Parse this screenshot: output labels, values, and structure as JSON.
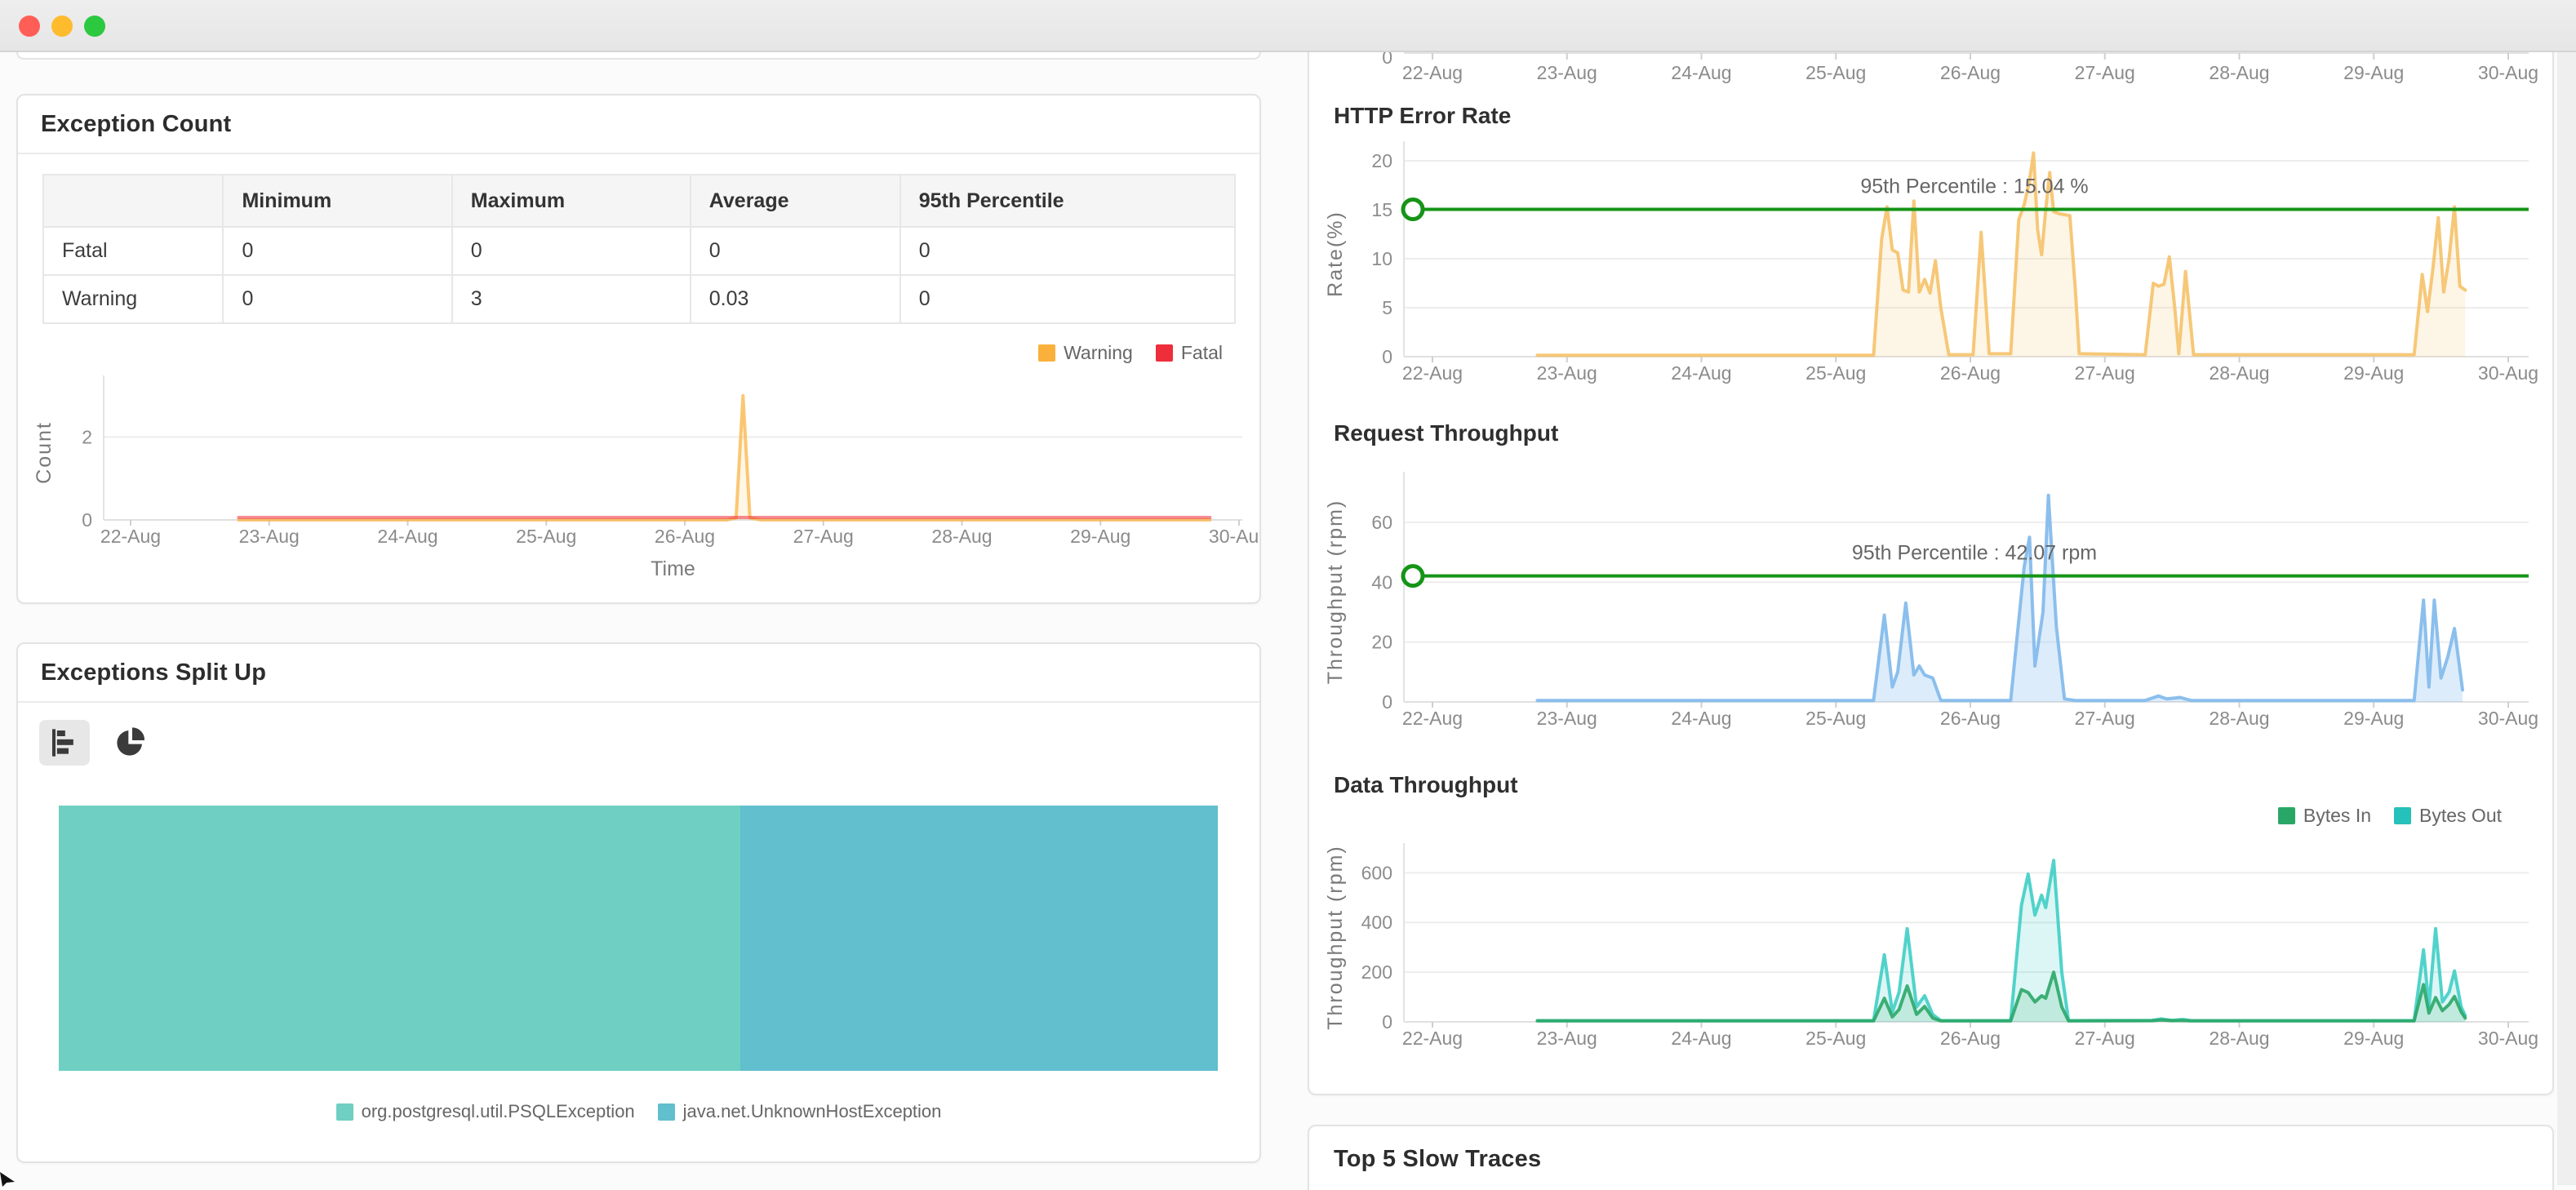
{
  "window": {
    "traffic_lights": [
      "close",
      "minimize",
      "maximize"
    ]
  },
  "left": {
    "exception_count": {
      "title": "Exception Count",
      "table": {
        "headers": [
          "",
          "Minimum",
          "Maximum",
          "Average",
          "95th Percentile"
        ],
        "rows": [
          [
            "Fatal",
            "0",
            "0",
            "0",
            "0"
          ],
          [
            "Warning",
            "0",
            "3",
            "0.03",
            "0"
          ]
        ]
      },
      "legend": [
        {
          "label": "Warning",
          "color": "#F9B13C"
        },
        {
          "label": "Fatal",
          "color": "#EE2E3A"
        }
      ]
    },
    "exceptions_split": {
      "title": "Exceptions Split Up",
      "toolbar": [
        {
          "name": "bar-chart",
          "selected": true
        },
        {
          "name": "pie-chart",
          "selected": false
        }
      ],
      "stacked_bar": [
        {
          "label": "org.postgresql.util.PSQLException",
          "color": "#6FCFC2",
          "percent": 58.8
        },
        {
          "label": "java.net.UnknownHostException",
          "color": "#61BFCE",
          "percent": 41.2
        }
      ]
    }
  },
  "right": {
    "slow_traces_title": "Top 5 Slow Traces"
  },
  "chart_data": [
    {
      "id": "top-axis",
      "type": "area",
      "title": "",
      "axis_only": true,
      "xticks": [
        "22-Aug",
        "23-Aug",
        "24-Aug",
        "25-Aug",
        "26-Aug",
        "27-Aug",
        "28-Aug",
        "29-Aug",
        "30-Aug"
      ],
      "yticks": [
        0
      ],
      "note": "bottom edge of a chart cut off by the window top"
    },
    {
      "id": "exception-count-trend",
      "type": "area",
      "title": "",
      "xlabel": "Time",
      "ylabel": "Count",
      "xticks": [
        "22-Aug",
        "23-Aug",
        "24-Aug",
        "25-Aug",
        "26-Aug",
        "27-Aug",
        "28-Aug",
        "29-Aug",
        "30-Aug"
      ],
      "yticks": [
        0,
        2
      ],
      "ymax": 3.25,
      "series": [
        {
          "name": "Warning",
          "color": "#F9B13C",
          "line_opacity": 0.7,
          "fill_opacity": 0.12,
          "points": [
            [
              22.78,
              0
            ],
            [
              26.3,
              0
            ],
            [
              26.37,
              0.05
            ],
            [
              26.42,
              3
            ],
            [
              26.47,
              0.05
            ],
            [
              26.55,
              0
            ],
            [
              29.79,
              0
            ]
          ]
        },
        {
          "name": "Fatal",
          "color": "#EE2E3A",
          "line_opacity": 0.55,
          "fill_opacity": 0,
          "points": [
            [
              22.78,
              0.06
            ],
            [
              29.79,
              0.06
            ]
          ]
        }
      ]
    },
    {
      "id": "http-error-rate",
      "type": "area",
      "title": "HTTP Error Rate",
      "ylabel": "Rate(%)",
      "xticks": [
        "22-Aug",
        "23-Aug",
        "24-Aug",
        "25-Aug",
        "26-Aug",
        "27-Aug",
        "28-Aug",
        "29-Aug",
        "30-Aug"
      ],
      "yticks": [
        0,
        5,
        10,
        15,
        20
      ],
      "ymax": 21,
      "percentile": {
        "value": 15.04,
        "label": "95th Percentile : 15.04 %",
        "color": "#169417"
      },
      "series": [
        {
          "name": "HTTP Error Rate",
          "color": "#F5BE62",
          "line_opacity": 0.85,
          "fill_opacity": 0.16,
          "points": [
            [
              22.78,
              0.15
            ],
            [
              25.28,
              0.15
            ],
            [
              25.34,
              12
            ],
            [
              25.38,
              15.3
            ],
            [
              25.42,
              10.9
            ],
            [
              25.46,
              10.6
            ],
            [
              25.5,
              6.8
            ],
            [
              25.54,
              6.6
            ],
            [
              25.58,
              15.9
            ],
            [
              25.62,
              6.6
            ],
            [
              25.66,
              7.9
            ],
            [
              25.7,
              6.5
            ],
            [
              25.74,
              9.8
            ],
            [
              25.78,
              5
            ],
            [
              25.84,
              0.2
            ],
            [
              26.02,
              0.2
            ],
            [
              26.08,
              12.7
            ],
            [
              26.14,
              0.3
            ],
            [
              26.3,
              0.3
            ],
            [
              26.36,
              14
            ],
            [
              26.4,
              15.5
            ],
            [
              26.44,
              18
            ],
            [
              26.47,
              20.8
            ],
            [
              26.5,
              13
            ],
            [
              26.53,
              10.4
            ],
            [
              26.56,
              15
            ],
            [
              26.59,
              18.8
            ],
            [
              26.62,
              14.8
            ],
            [
              26.66,
              14.6
            ],
            [
              26.7,
              14.5
            ],
            [
              26.74,
              14.4
            ],
            [
              26.78,
              7
            ],
            [
              26.81,
              0.3
            ],
            [
              27.3,
              0.2
            ],
            [
              27.36,
              7.5
            ],
            [
              27.4,
              7.2
            ],
            [
              27.44,
              7.4
            ],
            [
              27.48,
              10.2
            ],
            [
              27.52,
              5
            ],
            [
              27.55,
              0.3
            ],
            [
              27.6,
              8.7
            ],
            [
              27.66,
              0.2
            ],
            [
              29.3,
              0.2
            ],
            [
              29.36,
              8.4
            ],
            [
              29.4,
              4.6
            ],
            [
              29.44,
              9
            ],
            [
              29.48,
              14.2
            ],
            [
              29.52,
              6.6
            ],
            [
              29.56,
              10
            ],
            [
              29.6,
              15.3
            ],
            [
              29.64,
              7.2
            ],
            [
              29.68,
              6.8
            ]
          ]
        }
      ]
    },
    {
      "id": "request-throughput",
      "type": "area",
      "title": "Request Throughput",
      "ylabel": "Throughput (rpm)",
      "xticks": [
        "22-Aug",
        "23-Aug",
        "24-Aug",
        "25-Aug",
        "26-Aug",
        "27-Aug",
        "28-Aug",
        "29-Aug",
        "30-Aug"
      ],
      "yticks": [
        0,
        20,
        40,
        60
      ],
      "ymax": 73.6,
      "percentile": {
        "value": 42.07,
        "label": "95th Percentile : 42.07 rpm",
        "color": "#169417"
      },
      "series": [
        {
          "name": "Request Throughput",
          "color": "#85BCEC",
          "line_opacity": 0.95,
          "fill_opacity": 0.28,
          "points": [
            [
              22.78,
              0.5
            ],
            [
              25.28,
              0.5
            ],
            [
              25.36,
              29
            ],
            [
              25.42,
              5
            ],
            [
              25.46,
              10
            ],
            [
              25.52,
              33
            ],
            [
              25.58,
              9
            ],
            [
              25.62,
              12
            ],
            [
              25.66,
              9
            ],
            [
              25.72,
              8
            ],
            [
              25.78,
              0.5
            ],
            [
              26.3,
              0.5
            ],
            [
              26.4,
              45
            ],
            [
              26.44,
              55
            ],
            [
              26.48,
              12
            ],
            [
              26.54,
              30
            ],
            [
              26.58,
              69
            ],
            [
              26.64,
              25
            ],
            [
              26.7,
              1
            ],
            [
              26.78,
              0.5
            ],
            [
              27.3,
              0.5
            ],
            [
              27.4,
              2
            ],
            [
              27.46,
              1
            ],
            [
              27.56,
              1.5
            ],
            [
              27.64,
              0.5
            ],
            [
              29.3,
              0.5
            ],
            [
              29.37,
              34
            ],
            [
              29.41,
              5
            ],
            [
              29.45,
              34
            ],
            [
              29.5,
              8
            ],
            [
              29.55,
              15
            ],
            [
              29.6,
              24.5
            ],
            [
              29.66,
              4
            ]
          ]
        }
      ]
    },
    {
      "id": "data-throughput",
      "type": "area",
      "title": "Data Throughput",
      "ylabel": "Throughput (rpm)",
      "xticks": [
        "22-Aug",
        "23-Aug",
        "24-Aug",
        "25-Aug",
        "26-Aug",
        "27-Aug",
        "28-Aug",
        "29-Aug",
        "30-Aug"
      ],
      "yticks": [
        0,
        200,
        400,
        600
      ],
      "ymax": 680,
      "legend": [
        {
          "label": "Bytes In",
          "color": "#29A767"
        },
        {
          "label": "Bytes Out",
          "color": "#25C1BA"
        }
      ],
      "series": [
        {
          "name": "Bytes Out",
          "color": "#3FCEC5",
          "line_opacity": 0.9,
          "fill_opacity": 0.18,
          "points": [
            [
              22.78,
              5
            ],
            [
              25.28,
              5
            ],
            [
              25.36,
              270
            ],
            [
              25.42,
              40
            ],
            [
              25.47,
              120
            ],
            [
              25.53,
              375
            ],
            [
              25.6,
              60
            ],
            [
              25.66,
              105
            ],
            [
              25.72,
              30
            ],
            [
              25.78,
              5
            ],
            [
              26.3,
              5
            ],
            [
              26.38,
              470
            ],
            [
              26.43,
              595
            ],
            [
              26.48,
              430
            ],
            [
              26.53,
              510
            ],
            [
              26.56,
              460
            ],
            [
              26.62,
              650
            ],
            [
              26.68,
              200
            ],
            [
              26.73,
              5
            ],
            [
              27.35,
              6
            ],
            [
              27.42,
              12
            ],
            [
              27.5,
              6
            ],
            [
              27.58,
              10
            ],
            [
              27.64,
              5
            ],
            [
              29.3,
              5
            ],
            [
              29.37,
              290
            ],
            [
              29.41,
              60
            ],
            [
              29.46,
              375
            ],
            [
              29.51,
              80
            ],
            [
              29.56,
              120
            ],
            [
              29.6,
              205
            ],
            [
              29.65,
              60
            ],
            [
              29.68,
              25
            ]
          ]
        },
        {
          "name": "Bytes In",
          "color": "#2BA768",
          "line_opacity": 0.9,
          "fill_opacity": 0.15,
          "points": [
            [
              22.78,
              4
            ],
            [
              25.28,
              4
            ],
            [
              25.36,
              95
            ],
            [
              25.42,
              20
            ],
            [
              25.47,
              50
            ],
            [
              25.53,
              145
            ],
            [
              25.6,
              30
            ],
            [
              25.66,
              62
            ],
            [
              25.72,
              15
            ],
            [
              25.78,
              4
            ],
            [
              26.3,
              4
            ],
            [
              26.38,
              130
            ],
            [
              26.43,
              118
            ],
            [
              26.48,
              80
            ],
            [
              26.53,
              105
            ],
            [
              26.56,
              95
            ],
            [
              26.62,
              200
            ],
            [
              26.68,
              60
            ],
            [
              26.73,
              4
            ],
            [
              27.35,
              5
            ],
            [
              27.42,
              8
            ],
            [
              27.5,
              5
            ],
            [
              27.58,
              6
            ],
            [
              27.64,
              4
            ],
            [
              29.3,
              4
            ],
            [
              29.37,
              150
            ],
            [
              29.41,
              35
            ],
            [
              29.46,
              98
            ],
            [
              29.51,
              45
            ],
            [
              29.56,
              70
            ],
            [
              29.6,
              102
            ],
            [
              29.65,
              40
            ],
            [
              29.68,
              15
            ]
          ]
        }
      ]
    }
  ]
}
